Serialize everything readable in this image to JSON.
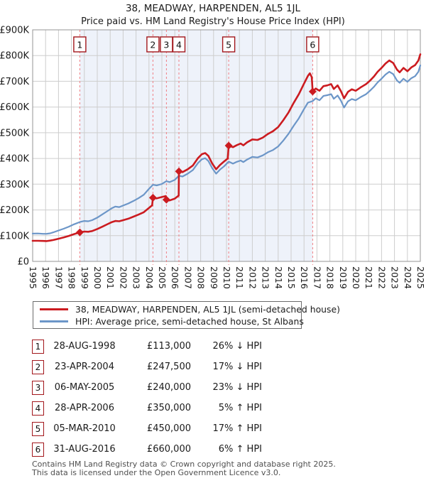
{
  "header": {
    "title": "38, MEADWAY, HARPENDEN, AL5 1JL",
    "subtitle": "Price paid vs. HM Land Registry's House Price Index (HPI)"
  },
  "colors": {
    "price_line": "#cb1b20",
    "hpi_line": "#6c96c8",
    "shade": "#eef2fa",
    "grid": "#cdcdcd",
    "plot_border": "#959595",
    "dashed_marker": "#f17f84",
    "marker_box_border": "#a2161b",
    "axis_text": "#1b1b1b"
  },
  "legend": {
    "items": [
      {
        "label": "38, MEADWAY, HARPENDEN, AL5 1JL (semi-detached house)",
        "color": "#cb1b20"
      },
      {
        "label": "HPI: Average price, semi-detached house, St Albans",
        "color": "#6c96c8"
      }
    ]
  },
  "transactions": [
    {
      "n": "1",
      "date": "28-AUG-1998",
      "price": "£113,000",
      "pct": "26%",
      "direction": "↓",
      "vs": "HPI",
      "year": 1998.65,
      "value": 113000
    },
    {
      "n": "2",
      "date": "23-APR-2004",
      "price": "£247,500",
      "pct": "17%",
      "direction": "↓",
      "vs": "HPI",
      "year": 2004.31,
      "value": 247500
    },
    {
      "n": "3",
      "date": "06-MAY-2005",
      "price": "£240,000",
      "pct": "23%",
      "direction": "↓",
      "vs": "HPI",
      "year": 2005.35,
      "value": 240000
    },
    {
      "n": "4",
      "date": "28-APR-2006",
      "price": "£350,000",
      "pct": "5%",
      "direction": "↑",
      "vs": "HPI",
      "year": 2006.32,
      "value": 350000
    },
    {
      "n": "5",
      "date": "05-MAR-2010",
      "price": "£450,000",
      "pct": "17%",
      "direction": "↑",
      "vs": "HPI",
      "year": 2010.17,
      "value": 450000
    },
    {
      "n": "6",
      "date": "31-AUG-2016",
      "price": "£660,000",
      "pct": "6%",
      "direction": "↑",
      "vs": "HPI",
      "year": 2016.67,
      "value": 660000
    }
  ],
  "footer": {
    "line1": "Contains HM Land Registry data © Crown copyright and database right 2025.",
    "line2": "This data is licensed under the Open Government Licence v3.0."
  },
  "chart_data": {
    "type": "line",
    "title": "38, MEADWAY, HARPENDEN, AL5 1JL — Price paid vs. HPI",
    "xlabel": "",
    "ylabel": "",
    "x_range": [
      1995,
      2025
    ],
    "y_range": [
      0,
      900000
    ],
    "grid": true,
    "legend_position": "below",
    "shaded_region": {
      "from": 1998.65,
      "to": 2016.67
    },
    "x_ticks": [
      1995,
      1996,
      1997,
      1998,
      1999,
      2000,
      2001,
      2002,
      2003,
      2004,
      2005,
      2006,
      2007,
      2008,
      2009,
      2010,
      2011,
      2012,
      2013,
      2014,
      2015,
      2016,
      2017,
      2018,
      2019,
      2020,
      2021,
      2022,
      2023,
      2024,
      2025
    ],
    "y_ticks": [
      {
        "value": 0,
        "label": "£0"
      },
      {
        "value": 100000,
        "label": "£100K"
      },
      {
        "value": 200000,
        "label": "£200K"
      },
      {
        "value": 300000,
        "label": "£300K"
      },
      {
        "value": 400000,
        "label": "£400K"
      },
      {
        "value": 500000,
        "label": "£500K"
      },
      {
        "value": 600000,
        "label": "£600K"
      },
      {
        "value": 700000,
        "label": "£700K"
      },
      {
        "value": 800000,
        "label": "£800K"
      },
      {
        "value": 900000,
        "label": "£900K"
      }
    ],
    "series": [
      {
        "name": "HPI: Average price, semi-detached house, St Albans",
        "color": "#6c96c8",
        "points": [
          [
            1995.0,
            108000
          ],
          [
            1995.4,
            108500
          ],
          [
            1995.8,
            107000
          ],
          [
            1996.1,
            107500
          ],
          [
            1996.35,
            109000
          ],
          [
            1996.6,
            113000
          ],
          [
            1997.0,
            120000
          ],
          [
            1997.4,
            127000
          ],
          [
            1997.8,
            135000
          ],
          [
            1998.2,
            144000
          ],
          [
            1998.65,
            153000
          ],
          [
            1999.0,
            157000
          ],
          [
            1999.3,
            156000
          ],
          [
            1999.6,
            160000
          ],
          [
            2000.0,
            170000
          ],
          [
            2000.4,
            183000
          ],
          [
            2000.8,
            196000
          ],
          [
            2001.1,
            206000
          ],
          [
            2001.4,
            213000
          ],
          [
            2001.7,
            211000
          ],
          [
            2002.0,
            217000
          ],
          [
            2002.4,
            225000
          ],
          [
            2002.8,
            235000
          ],
          [
            2003.2,
            246000
          ],
          [
            2003.6,
            259000
          ],
          [
            2004.0,
            282000
          ],
          [
            2004.31,
            298000
          ],
          [
            2004.6,
            295000
          ],
          [
            2005.0,
            301000
          ],
          [
            2005.35,
            312000
          ],
          [
            2005.6,
            308000
          ],
          [
            2006.0,
            317000
          ],
          [
            2006.32,
            333000
          ],
          [
            2006.6,
            330000
          ],
          [
            2007.0,
            341000
          ],
          [
            2007.4,
            355000
          ],
          [
            2007.8,
            383000
          ],
          [
            2008.1,
            397000
          ],
          [
            2008.35,
            401000
          ],
          [
            2008.6,
            390000
          ],
          [
            2008.9,
            362000
          ],
          [
            2009.2,
            341000
          ],
          [
            2009.5,
            357000
          ],
          [
            2009.8,
            369000
          ],
          [
            2010.17,
            388000
          ],
          [
            2010.5,
            380000
          ],
          [
            2010.8,
            387000
          ],
          [
            2011.1,
            392000
          ],
          [
            2011.3,
            386000
          ],
          [
            2011.6,
            396000
          ],
          [
            2012.0,
            406000
          ],
          [
            2012.4,
            404000
          ],
          [
            2012.8,
            412000
          ],
          [
            2013.2,
            424000
          ],
          [
            2013.6,
            433000
          ],
          [
            2014.0,
            447000
          ],
          [
            2014.4,
            470000
          ],
          [
            2014.8,
            496000
          ],
          [
            2015.2,
            527000
          ],
          [
            2015.6,
            556000
          ],
          [
            2016.0,
            592000
          ],
          [
            2016.3,
            617000
          ],
          [
            2016.67,
            623000
          ],
          [
            2016.9,
            634000
          ],
          [
            2017.2,
            626000
          ],
          [
            2017.5,
            643000
          ],
          [
            2017.8,
            646000
          ],
          [
            2018.1,
            650000
          ],
          [
            2018.3,
            632000
          ],
          [
            2018.6,
            645000
          ],
          [
            2018.85,
            625000
          ],
          [
            2019.1,
            598000
          ],
          [
            2019.4,
            622000
          ],
          [
            2019.7,
            631000
          ],
          [
            2020.0,
            626000
          ],
          [
            2020.4,
            639000
          ],
          [
            2020.8,
            650000
          ],
          [
            2021.1,
            663000
          ],
          [
            2021.4,
            678000
          ],
          [
            2021.7,
            696000
          ],
          [
            2022.0,
            710000
          ],
          [
            2022.3,
            726000
          ],
          [
            2022.6,
            737000
          ],
          [
            2022.9,
            728000
          ],
          [
            2023.2,
            703000
          ],
          [
            2023.4,
            694000
          ],
          [
            2023.7,
            710000
          ],
          [
            2024.0,
            698000
          ],
          [
            2024.3,
            712000
          ],
          [
            2024.6,
            720000
          ],
          [
            2024.85,
            737000
          ],
          [
            2025.0,
            762000
          ]
        ]
      },
      {
        "name": "38, MEADWAY, HARPENDEN, AL5 1JL (semi-detached house)",
        "color": "#cb1b20",
        "points": [
          [
            1995.0,
            80000
          ],
          [
            1995.4,
            80000
          ],
          [
            1995.8,
            79500
          ],
          [
            1996.1,
            79000
          ],
          [
            1996.35,
            81000
          ],
          [
            1996.6,
            83000
          ],
          [
            1997.0,
            88000
          ],
          [
            1997.4,
            93000
          ],
          [
            1997.8,
            99000
          ],
          [
            1998.2,
            106000
          ],
          [
            1998.65,
            113000
          ],
          [
            1999.0,
            116000
          ],
          [
            1999.3,
            115000
          ],
          [
            1999.6,
            118000
          ],
          [
            2000.0,
            126000
          ],
          [
            2000.4,
            135000
          ],
          [
            2000.8,
            145000
          ],
          [
            2001.1,
            152000
          ],
          [
            2001.4,
            157000
          ],
          [
            2001.7,
            156000
          ],
          [
            2002.0,
            160000
          ],
          [
            2002.4,
            166000
          ],
          [
            2002.8,
            174000
          ],
          [
            2003.2,
            182000
          ],
          [
            2003.6,
            191000
          ],
          [
            2004.0,
            208000
          ],
          [
            2004.25,
            218000
          ],
          [
            2004.31,
            247500
          ],
          [
            2004.6,
            245000
          ],
          [
            2005.0,
            250000
          ],
          [
            2005.3,
            254000
          ],
          [
            2005.35,
            240000
          ],
          [
            2005.6,
            237000
          ],
          [
            2006.0,
            244000
          ],
          [
            2006.3,
            256000
          ],
          [
            2006.32,
            350000
          ],
          [
            2006.6,
            347000
          ],
          [
            2007.0,
            358000
          ],
          [
            2007.4,
            373000
          ],
          [
            2007.8,
            402000
          ],
          [
            2008.1,
            417000
          ],
          [
            2008.35,
            421000
          ],
          [
            2008.6,
            410000
          ],
          [
            2008.9,
            380000
          ],
          [
            2009.2,
            358000
          ],
          [
            2009.5,
            375000
          ],
          [
            2009.8,
            388000
          ],
          [
            2010.1,
            400000
          ],
          [
            2010.17,
            450000
          ],
          [
            2010.5,
            444000
          ],
          [
            2010.8,
            452000
          ],
          [
            2011.1,
            458000
          ],
          [
            2011.3,
            451000
          ],
          [
            2011.6,
            463000
          ],
          [
            2012.0,
            474000
          ],
          [
            2012.4,
            472000
          ],
          [
            2012.8,
            481000
          ],
          [
            2013.2,
            495000
          ],
          [
            2013.6,
            506000
          ],
          [
            2014.0,
            522000
          ],
          [
            2014.4,
            549000
          ],
          [
            2014.8,
            579000
          ],
          [
            2015.2,
            616000
          ],
          [
            2015.6,
            650000
          ],
          [
            2016.0,
            691000
          ],
          [
            2016.3,
            721000
          ],
          [
            2016.45,
            731000
          ],
          [
            2016.6,
            716000
          ],
          [
            2016.67,
            660000
          ],
          [
            2016.9,
            672000
          ],
          [
            2017.2,
            663000
          ],
          [
            2017.5,
            681000
          ],
          [
            2017.8,
            684000
          ],
          [
            2018.1,
            689000
          ],
          [
            2018.3,
            670000
          ],
          [
            2018.6,
            684000
          ],
          [
            2018.85,
            662000
          ],
          [
            2019.1,
            634000
          ],
          [
            2019.4,
            659000
          ],
          [
            2019.7,
            669000
          ],
          [
            2020.0,
            663000
          ],
          [
            2020.4,
            677000
          ],
          [
            2020.8,
            689000
          ],
          [
            2021.1,
            702000
          ],
          [
            2021.4,
            718000
          ],
          [
            2021.7,
            737000
          ],
          [
            2022.0,
            752000
          ],
          [
            2022.3,
            769000
          ],
          [
            2022.6,
            781000
          ],
          [
            2022.9,
            771000
          ],
          [
            2023.2,
            745000
          ],
          [
            2023.4,
            735000
          ],
          [
            2023.7,
            752000
          ],
          [
            2024.0,
            739000
          ],
          [
            2024.3,
            754000
          ],
          [
            2024.6,
            763000
          ],
          [
            2024.85,
            781000
          ],
          [
            2025.0,
            805000
          ]
        ]
      }
    ]
  }
}
